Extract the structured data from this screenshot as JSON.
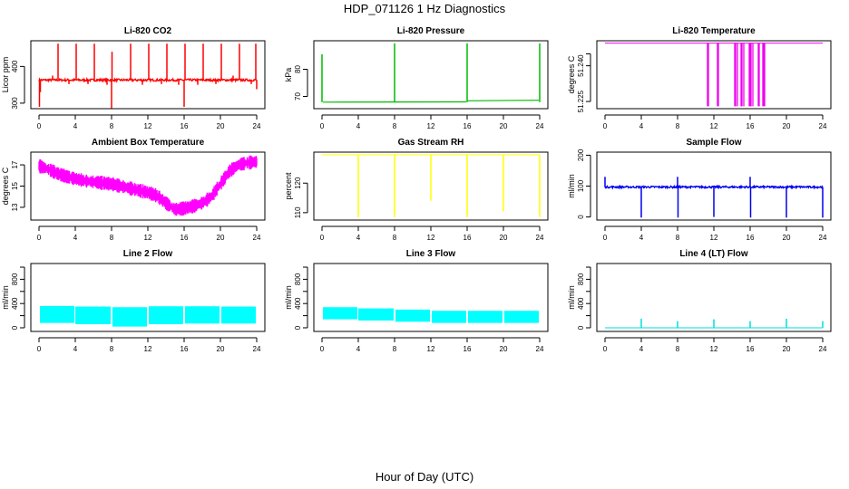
{
  "figure": {
    "title": "HDP_071126  1 Hz Diagnostics",
    "xlabel": "Hour of Day (UTC)"
  },
  "chart_data": [
    {
      "type": "line",
      "title": "Li-820 CO2",
      "ylabel": "Licor ppm",
      "color": "#ff0000",
      "xlim": [
        0,
        24
      ],
      "ylim": [
        285,
        470
      ],
      "xticks": [
        0,
        4,
        8,
        12,
        16,
        20,
        24
      ],
      "yticks": [
        300,
        400
      ],
      "baseline": 363,
      "noise": 6,
      "events": [
        {
          "x": 0.05,
          "y": 290
        },
        {
          "x": 0.15,
          "y": 330
        },
        {
          "x": 1.5,
          "y": 375
        },
        {
          "x": 2.1,
          "y": 462
        },
        {
          "x": 3.3,
          "y": 352
        },
        {
          "x": 4.1,
          "y": 462
        },
        {
          "x": 5.4,
          "y": 352
        },
        {
          "x": 6.1,
          "y": 462
        },
        {
          "x": 7.5,
          "y": 350
        },
        {
          "x": 8.0,
          "y": 285
        },
        {
          "x": 8.05,
          "y": 440
        },
        {
          "x": 10.1,
          "y": 462
        },
        {
          "x": 11.4,
          "y": 350
        },
        {
          "x": 12.1,
          "y": 462
        },
        {
          "x": 13.5,
          "y": 352
        },
        {
          "x": 14.1,
          "y": 462
        },
        {
          "x": 15.4,
          "y": 350
        },
        {
          "x": 16.0,
          "y": 290
        },
        {
          "x": 16.1,
          "y": 462
        },
        {
          "x": 17.5,
          "y": 350
        },
        {
          "x": 18.1,
          "y": 462
        },
        {
          "x": 19.5,
          "y": 352
        },
        {
          "x": 20.1,
          "y": 462
        },
        {
          "x": 21.4,
          "y": 375
        },
        {
          "x": 22.1,
          "y": 462
        },
        {
          "x": 23.4,
          "y": 352
        },
        {
          "x": 23.9,
          "y": 462
        },
        {
          "x": 24.0,
          "y": 338
        }
      ]
    },
    {
      "type": "line",
      "title": "Li-820 Pressure",
      "ylabel": "kPa",
      "color": "#00bb00",
      "xlim": [
        0,
        24
      ],
      "ylim": [
        65.5,
        90.5
      ],
      "xticks": [
        0,
        4,
        8,
        12,
        16,
        20,
        24
      ],
      "yticks": [
        70,
        80
      ],
      "segments": [
        {
          "x0": 0.1,
          "x1": 15.9,
          "y0": 67.9,
          "y1": 68.0
        },
        {
          "x0": 16.0,
          "x1": 23.9,
          "y0": 68.4,
          "y1": 68.6
        }
      ],
      "events": [
        {
          "x": 0.0,
          "y": 85.5
        },
        {
          "x": 8.0,
          "y": 89.5
        },
        {
          "x": 16.0,
          "y": 89.5
        },
        {
          "x": 24.0,
          "y": 89.5
        }
      ]
    },
    {
      "type": "line",
      "title": "Li-820 Temperature",
      "ylabel": "degrees C",
      "color": "#ee00ee",
      "xlim": [
        0,
        24
      ],
      "ylim": [
        51.222,
        51.2505
      ],
      "xticks": [
        0,
        4,
        8,
        12,
        16,
        20,
        24
      ],
      "yticks": [
        51.225,
        51.24,
        51.245
      ],
      "ytick_labels": [
        "51.225",
        "51.240",
        ""
      ],
      "baseline": 51.2495,
      "dropouts": [
        11.3,
        11.4,
        12.4,
        12.5,
        14.3,
        14.4,
        14.6,
        15.0,
        15.1,
        15.3,
        15.9,
        16.0,
        16.1,
        16.3,
        16.9,
        17.0,
        17.4,
        17.5,
        17.6
      ],
      "dropout_level": 51.223
    },
    {
      "type": "area",
      "title": "Ambient Box Temperature",
      "ylabel": "degrees C",
      "color": "#ff00ff",
      "xlim": [
        0,
        24
      ],
      "ylim": [
        11.8,
        18.2
      ],
      "xticks": [
        0,
        4,
        8,
        12,
        16,
        20,
        24
      ],
      "yticks": [
        13,
        15,
        17
      ],
      "x": [
        0,
        1,
        2,
        3,
        4,
        5,
        6,
        7,
        8,
        9,
        10,
        11,
        12,
        13,
        14,
        15,
        16,
        17,
        18,
        19,
        20,
        21,
        22,
        23,
        24
      ],
      "center": [
        16.9,
        16.6,
        16.2,
        15.9,
        15.7,
        15.5,
        15.4,
        15.3,
        15.2,
        15.0,
        14.8,
        14.6,
        14.4,
        14.1,
        13.4,
        12.8,
        12.9,
        13.1,
        13.4,
        14.0,
        15.2,
        16.4,
        17.0,
        17.2,
        17.3
      ],
      "halfwidth": 0.45
    },
    {
      "type": "line",
      "title": "Gas Stream RH",
      "ylabel": "percent",
      "color": "#ffff00",
      "xlim": [
        0,
        24
      ],
      "ylim": [
        107.5,
        130.5
      ],
      "xticks": [
        0,
        4,
        8,
        12,
        16,
        20,
        24
      ],
      "yticks": [
        110,
        120
      ],
      "baseline": 129.6,
      "events": [
        {
          "x": 4.0,
          "y": 108.5
        },
        {
          "x": 8.0,
          "y": 108.5
        },
        {
          "x": 12.0,
          "y": 114.0
        },
        {
          "x": 16.0,
          "y": 108.5
        },
        {
          "x": 20.0,
          "y": 110.5
        },
        {
          "x": 24.0,
          "y": 108.5
        }
      ]
    },
    {
      "type": "line",
      "title": "Sample Flow",
      "ylabel": "ml/min",
      "color": "#0000ee",
      "xlim": [
        0,
        24
      ],
      "ylim": [
        -10,
        210
      ],
      "xticks": [
        0,
        4,
        8,
        12,
        16,
        20,
        24
      ],
      "yticks": [
        0,
        100,
        200
      ],
      "baseline": 97,
      "noise": 6,
      "events": [
        {
          "x": 0.0,
          "y": 130
        },
        {
          "x": 4.0,
          "y": -2
        },
        {
          "x": 8.0,
          "y": 130
        },
        {
          "x": 8.05,
          "y": -2
        },
        {
          "x": 12.0,
          "y": 0
        },
        {
          "x": 16.0,
          "y": 130
        },
        {
          "x": 16.05,
          "y": -2
        },
        {
          "x": 20.0,
          "y": -2
        },
        {
          "x": 24.0,
          "y": -2
        }
      ]
    },
    {
      "type": "area",
      "title": "Line 2 Flow",
      "ylabel": "ml/min",
      "color": "#00ffff",
      "xlim": [
        0,
        24
      ],
      "ylim": [
        -60,
        1060
      ],
      "xticks": [
        0,
        4,
        8,
        12,
        16,
        20,
        24
      ],
      "yticks": [
        0,
        200,
        400,
        600,
        800,
        1000
      ],
      "ytick_labels": [
        "0",
        "",
        "400",
        "",
        "800",
        ""
      ],
      "bands": [
        {
          "x0": 0.1,
          "x1": 3.9,
          "low": 80,
          "high": 360
        },
        {
          "x0": 4.0,
          "x1": 7.9,
          "low": 60,
          "high": 350
        },
        {
          "x0": 8.1,
          "x1": 11.9,
          "low": 20,
          "high": 340
        },
        {
          "x0": 12.1,
          "x1": 15.9,
          "low": 60,
          "high": 355
        },
        {
          "x0": 16.1,
          "x1": 19.9,
          "low": 70,
          "high": 355
        },
        {
          "x0": 20.1,
          "x1": 23.9,
          "low": 70,
          "high": 350
        }
      ]
    },
    {
      "type": "area",
      "title": "Line 3 Flow",
      "ylabel": "ml/min",
      "color": "#00ffff",
      "xlim": [
        0,
        24
      ],
      "ylim": [
        -60,
        1060
      ],
      "xticks": [
        0,
        4,
        8,
        12,
        16,
        20,
        24
      ],
      "yticks": [
        0,
        200,
        400,
        600,
        800,
        1000
      ],
      "ytick_labels": [
        "0",
        "",
        "400",
        "",
        "800",
        ""
      ],
      "bands": [
        {
          "x0": 0.1,
          "x1": 3.9,
          "low": 140,
          "high": 340
        },
        {
          "x0": 4.0,
          "x1": 7.9,
          "low": 120,
          "high": 320
        },
        {
          "x0": 8.1,
          "x1": 11.9,
          "low": 100,
          "high": 300
        },
        {
          "x0": 12.1,
          "x1": 15.9,
          "low": 80,
          "high": 280
        },
        {
          "x0": 16.1,
          "x1": 19.9,
          "low": 80,
          "high": 280
        },
        {
          "x0": 20.1,
          "x1": 23.9,
          "low": 80,
          "high": 280
        }
      ]
    },
    {
      "type": "line",
      "title": "Line 4 (LT) Flow",
      "ylabel": "ml/min",
      "color": "#00dddd",
      "xlim": [
        0,
        24
      ],
      "ylim": [
        -60,
        1060
      ],
      "xticks": [
        0,
        4,
        8,
        12,
        16,
        20,
        24
      ],
      "yticks": [
        0,
        200,
        400,
        600,
        800,
        1000
      ],
      "ytick_labels": [
        "0",
        "",
        "400",
        "",
        "800",
        ""
      ],
      "baseline": 0,
      "events": [
        {
          "x": 4.0,
          "y": 150
        },
        {
          "x": 8.0,
          "y": 110
        },
        {
          "x": 12.0,
          "y": 140
        },
        {
          "x": 16.0,
          "y": 110
        },
        {
          "x": 20.0,
          "y": 150
        },
        {
          "x": 24.0,
          "y": 110
        }
      ]
    }
  ]
}
